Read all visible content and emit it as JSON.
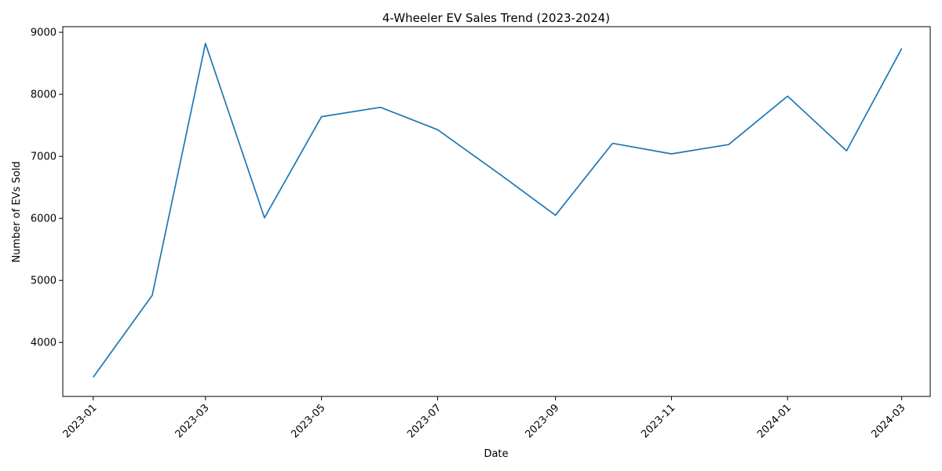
{
  "chart_data": {
    "type": "line",
    "title": "4-Wheeler EV Sales Trend (2023-2024)",
    "xlabel": "Date",
    "ylabel": "Number of EVs Sold",
    "x_type": "date",
    "xlim": [
      "2022-12-16",
      "2024-03-16"
    ],
    "ylim": [
      3130,
      9090
    ],
    "yticks": [
      4000,
      5000,
      6000,
      7000,
      8000,
      9000
    ],
    "xticks": [
      "2023-01",
      "2023-03",
      "2023-05",
      "2023-07",
      "2023-09",
      "2023-11",
      "2024-01",
      "2024-03"
    ],
    "x_tick_rotation": 45,
    "grid": false,
    "series": [
      {
        "color": "#1f77b4",
        "x": [
          "2023-01-01",
          "2023-02-01",
          "2023-03-01",
          "2023-04-01",
          "2023-05-01",
          "2023-06-01",
          "2023-07-01",
          "2023-08-01",
          "2023-09-01",
          "2023-10-01",
          "2023-11-01",
          "2023-12-01",
          "2024-01-01",
          "2024-02-01",
          "2024-03-01"
        ],
        "values": [
          3440,
          4760,
          8820,
          6010,
          7640,
          7790,
          7430,
          6750,
          6050,
          7210,
          7040,
          7190,
          7970,
          7090,
          8740
        ]
      }
    ]
  }
}
